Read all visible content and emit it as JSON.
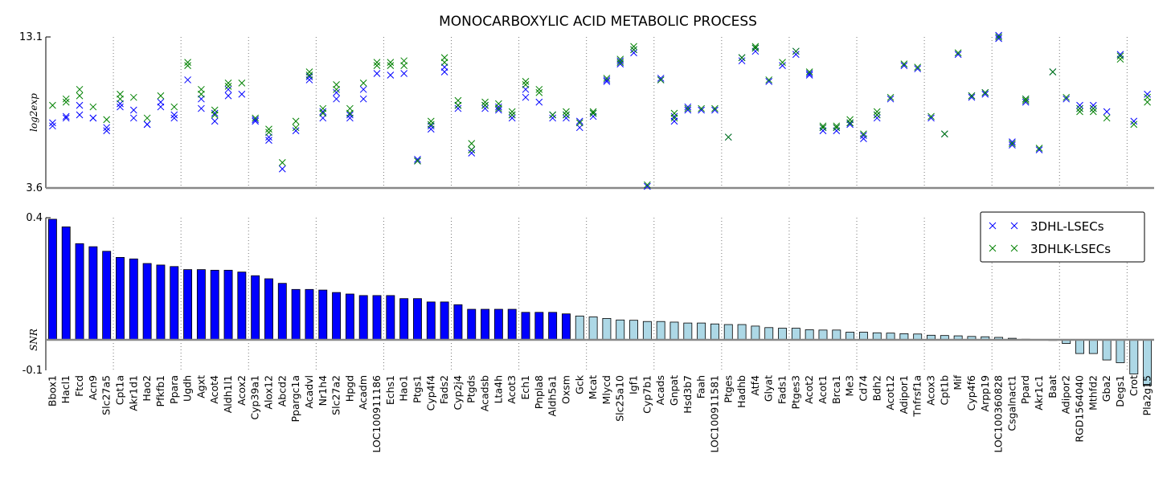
{
  "chart_data": {
    "type": "scatter+bar",
    "title": "MONOCARBOXYLIC ACID METABOLIC PROCESS",
    "categories": [
      "Bbox1",
      "Hacl1",
      "Ftcd",
      "Acn9",
      "Slc27a5",
      "Cpt1a",
      "Akr1d1",
      "Hao2",
      "Pfkfb1",
      "Ppara",
      "Ugdh",
      "Agxt",
      "Acot4",
      "Aldh1l1",
      "Acox2",
      "Cyp39a1",
      "Alox12",
      "Abcd2",
      "Ppargc1a",
      "Acadvl",
      "Nr1h4",
      "Slc27a2",
      "Hpgd",
      "Acadm",
      "LOC100911186",
      "Echs1",
      "Hao1",
      "Ptgs1",
      "Cyp4f4",
      "Fads2",
      "Cyp2j4",
      "Ptgds",
      "Acadsb",
      "Lta4h",
      "Acot3",
      "Ech1",
      "Pnpla8",
      "Aldh5a1",
      "Oxsm",
      "Gck",
      "Mcat",
      "Mlycd",
      "Slc25a10",
      "Igf1",
      "Cyp7b1",
      "Acads",
      "Gnpat",
      "Hsd3b7",
      "Faah",
      "LOC100911581",
      "Ptges",
      "Hadhb",
      "Atf4",
      "Glyat",
      "Fads1",
      "Ptges3",
      "Acot2",
      "Acot1",
      "Brca1",
      "Me3",
      "Cd74",
      "Bdh2",
      "Acot12",
      "Adipor1",
      "Tnfrsf1a",
      "Acox3",
      "Cpt1b",
      "Mif",
      "Cyp4f6",
      "Arpp19",
      "LOC100360828",
      "Csgalnact1",
      "Ppard",
      "Akr1c1",
      "Baat",
      "Adipor2",
      "RGD1564040",
      "Mthfd2",
      "Gba2",
      "Degs1",
      "Crot",
      "Pla2g15"
    ],
    "top_panel": {
      "ylabel": "log2exp",
      "ylim": [
        3.6,
        13.1
      ],
      "yticks": [
        "13.1",
        "3.6"
      ],
      "series": [
        {
          "name": "3DHL-LSECs",
          "color": "#0000ff",
          "values": [
            [
              7.5,
              7.7
            ],
            [
              8.0,
              8.1
            ],
            [
              8.8,
              8.2
            ],
            [
              8.0,
              8.0
            ],
            [
              7.2,
              7.4
            ],
            [
              8.7,
              8.9
            ],
            [
              8.5,
              8.0
            ],
            [
              7.6,
              7.6
            ],
            [
              8.7,
              9.0
            ],
            [
              8.0,
              8.2
            ],
            [
              10.4,
              null
            ],
            [
              8.6,
              9.2
            ],
            [
              7.8,
              8.3
            ],
            [
              9.4,
              9.8
            ],
            [
              9.5,
              null
            ],
            [
              7.8,
              7.9
            ],
            [
              6.6,
              6.8
            ],
            [
              4.8,
              null
            ],
            [
              7.2,
              null
            ],
            [
              10.4,
              10.6
            ],
            [
              8.0,
              8.4
            ],
            [
              9.2,
              9.6
            ],
            [
              8.0,
              8.2
            ],
            [
              9.2,
              9.8
            ],
            [
              10.8,
              null
            ],
            [
              10.7,
              null
            ],
            [
              10.8,
              null
            ],
            [
              5.3,
              5.4
            ],
            [
              7.3,
              7.5
            ],
            [
              10.9,
              11.2
            ],
            [
              8.6,
              8.8
            ],
            [
              5.8,
              6.0
            ],
            [
              8.6,
              8.8
            ],
            [
              8.5,
              8.7
            ],
            [
              8.0,
              8.2
            ],
            [
              9.3,
              9.8
            ],
            [
              9.0,
              null
            ],
            [
              8.0,
              8.2
            ],
            [
              8.0,
              8.2
            ],
            [
              7.4,
              7.8
            ],
            [
              8.1,
              8.3
            ],
            [
              10.3,
              10.4
            ],
            [
              11.4,
              11.6
            ],
            [
              12.1,
              12.3
            ],
            [
              3.7,
              null
            ],
            [
              10.4,
              10.5
            ],
            [
              7.8,
              8.1
            ],
            [
              8.5,
              8.7
            ],
            [
              8.5,
              null
            ],
            [
              8.5,
              null
            ],
            [
              6.8,
              null
            ],
            [
              11.6,
              11.8
            ],
            [
              12.2,
              12.4
            ],
            [
              10.3,
              null
            ],
            [
              11.3,
              null
            ],
            [
              12.0,
              12.2
            ],
            [
              10.7,
              10.8
            ],
            [
              7.2,
              7.4
            ],
            [
              7.2,
              7.4
            ],
            [
              7.6,
              7.7
            ],
            [
              6.7,
              6.9
            ],
            [
              8.0,
              8.2
            ],
            [
              9.2,
              null
            ],
            [
              11.3,
              null
            ],
            [
              11.1,
              null
            ],
            [
              8.0,
              null
            ],
            [
              7.0,
              null
            ],
            [
              12.0,
              null
            ],
            [
              9.3,
              9.4
            ],
            [
              9.5,
              9.6
            ],
            [
              13.0,
              13.2
            ],
            [
              6.3,
              6.5
            ],
            [
              9.0,
              9.2
            ],
            [
              6.0,
              null
            ],
            [
              10.9,
              null
            ],
            [
              9.2,
              null
            ],
            [
              8.6,
              8.8
            ],
            [
              8.6,
              8.8
            ],
            [
              8.4,
              null
            ],
            [
              12.0,
              null
            ],
            [
              7.8,
              null
            ],
            [
              9.5,
              null
            ]
          ]
        },
        {
          "name": "3DHLK-LSECs",
          "color": "#008000",
          "values": [
            [
              8.8,
              null
            ],
            [
              9.0,
              9.2
            ],
            [
              9.4,
              9.8
            ],
            [
              8.7,
              null
            ],
            [
              7.9,
              null
            ],
            [
              9.2,
              9.5
            ],
            [
              9.3,
              null
            ],
            [
              8.0,
              null
            ],
            [
              9.4,
              null
            ],
            [
              8.7,
              null
            ],
            [
              11.3,
              11.5
            ],
            [
              9.5,
              9.8
            ],
            [
              8.2,
              8.5
            ],
            [
              10.0,
              10.2
            ],
            [
              10.2,
              null
            ],
            [
              8.0,
              null
            ],
            [
              7.1,
              7.3
            ],
            [
              5.2,
              null
            ],
            [
              7.4,
              7.8
            ],
            [
              10.7,
              10.9
            ],
            [
              8.3,
              8.6
            ],
            [
              9.8,
              10.1
            ],
            [
              8.3,
              8.6
            ],
            [
              10.2,
              null
            ],
            [
              11.3,
              11.5
            ],
            [
              11.3,
              11.5
            ],
            [
              11.3,
              11.6
            ],
            [
              5.3,
              null
            ],
            [
              7.6,
              7.8
            ],
            [
              11.5,
              11.8
            ],
            [
              8.8,
              9.1
            ],
            [
              6.0,
              6.4
            ],
            [
              8.8,
              9.0
            ],
            [
              8.6,
              8.9
            ],
            [
              8.2,
              8.4
            ],
            [
              10.1,
              10.3
            ],
            [
              9.6,
              9.8
            ],
            [
              8.2,
              null
            ],
            [
              8.2,
              8.4
            ],
            [
              7.7,
              null
            ],
            [
              8.3,
              8.4
            ],
            [
              10.5,
              null
            ],
            [
              11.5,
              11.7
            ],
            [
              12.3,
              12.5
            ],
            [
              3.8,
              null
            ],
            [
              10.4,
              null
            ],
            [
              8.0,
              8.3
            ],
            [
              8.6,
              null
            ],
            [
              8.6,
              null
            ],
            [
              8.6,
              null
            ],
            [
              6.8,
              null
            ],
            [
              11.8,
              null
            ],
            [
              12.4,
              12.5
            ],
            [
              10.4,
              null
            ],
            [
              11.5,
              null
            ],
            [
              12.2,
              null
            ],
            [
              10.9,
              null
            ],
            [
              7.4,
              7.5
            ],
            [
              7.4,
              7.5
            ],
            [
              7.7,
              7.9
            ],
            [
              7.0,
              null
            ],
            [
              8.2,
              8.4
            ],
            [
              9.3,
              null
            ],
            [
              11.4,
              null
            ],
            [
              11.2,
              null
            ],
            [
              8.1,
              null
            ],
            [
              7.0,
              null
            ],
            [
              12.1,
              null
            ],
            [
              9.4,
              null
            ],
            [
              9.6,
              null
            ],
            [
              13.1,
              null
            ],
            [
              6.4,
              null
            ],
            [
              9.1,
              9.2
            ],
            [
              6.1,
              null
            ],
            [
              10.9,
              null
            ],
            [
              9.3,
              null
            ],
            [
              8.4,
              8.6
            ],
            [
              8.4,
              8.6
            ],
            [
              8.0,
              null
            ],
            [
              11.7,
              11.9
            ],
            [
              7.6,
              null
            ],
            [
              9.0,
              9.3
            ]
          ]
        }
      ]
    },
    "bottom_panel": {
      "type": "bar",
      "ylabel": "SNR",
      "ylim": [
        -0.1,
        0.4
      ],
      "yticks": [
        "0.4",
        "-0.1"
      ],
      "values": [
        0.395,
        0.37,
        0.315,
        0.305,
        0.29,
        0.27,
        0.265,
        0.25,
        0.245,
        0.24,
        0.23,
        0.23,
        0.228,
        0.228,
        0.222,
        0.21,
        0.2,
        0.185,
        0.165,
        0.165,
        0.163,
        0.155,
        0.15,
        0.145,
        0.145,
        0.145,
        0.135,
        0.135,
        0.124,
        0.124,
        0.115,
        0.1,
        0.1,
        0.1,
        0.1,
        0.09,
        0.09,
        0.09,
        0.085,
        0.078,
        0.075,
        0.07,
        0.065,
        0.064,
        0.06,
        0.06,
        0.058,
        0.055,
        0.055,
        0.052,
        0.05,
        0.05,
        0.045,
        0.04,
        0.038,
        0.038,
        0.033,
        0.032,
        0.032,
        0.025,
        0.025,
        0.023,
        0.022,
        0.02,
        0.019,
        0.015,
        0.014,
        0.013,
        0.011,
        0.01,
        0.008,
        0.005,
        0.002,
        0.001,
        -0.002,
        -0.012,
        -0.045,
        -0.045,
        -0.066,
        -0.075,
        -0.112,
        -0.15
      ],
      "positive_significant_color": "#0000ff",
      "other_color": "#add8e6",
      "significant_count": 39
    },
    "legend": {
      "position": "top-right of bottom panel",
      "entries": [
        "3DHL-LSECs",
        "3DHLK-LSECs"
      ]
    },
    "grid": "vertical dotted lines every 5 categories"
  }
}
